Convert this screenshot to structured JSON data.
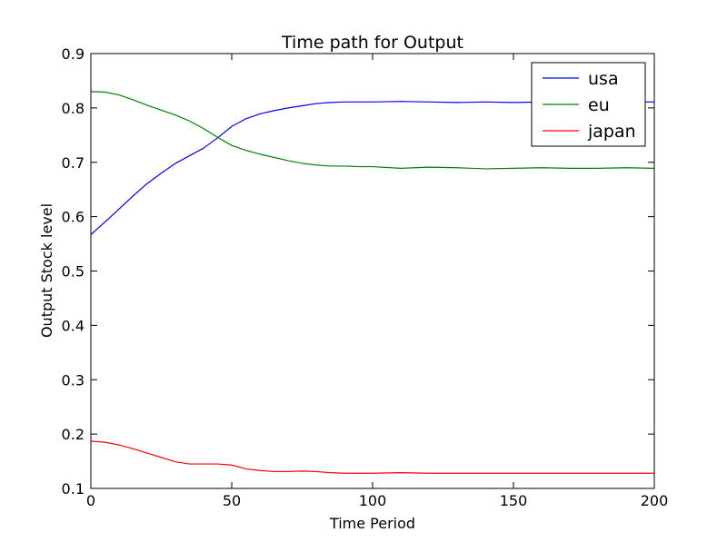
{
  "chart_data": {
    "type": "line",
    "title": "Time path for Output",
    "xlabel": "Time Period",
    "ylabel": "Output Stock level",
    "xlim": [
      0,
      200
    ],
    "ylim": [
      0.1,
      0.9
    ],
    "xticks": [
      0,
      50,
      100,
      150,
      200
    ],
    "yticks": [
      0.1,
      0.2,
      0.3,
      0.4,
      0.5,
      0.6,
      0.7,
      0.8,
      0.9
    ],
    "xtick_labels": [
      "0",
      "50",
      "100",
      "150",
      "200"
    ],
    "ytick_labels": [
      "0.1",
      "0.2",
      "0.3",
      "0.4",
      "0.5",
      "0.6",
      "0.7",
      "0.8",
      "0.9"
    ],
    "grid": false,
    "legend_position": "top-right",
    "x": [
      0,
      5,
      10,
      15,
      20,
      25,
      30,
      35,
      40,
      45,
      50,
      55,
      60,
      65,
      70,
      75,
      80,
      85,
      90,
      95,
      100,
      110,
      120,
      130,
      140,
      150,
      160,
      170,
      180,
      190,
      200
    ],
    "series": [
      {
        "name": "usa",
        "color": "#0000ff",
        "values": [
          0.567,
          0.59,
          0.614,
          0.638,
          0.661,
          0.68,
          0.698,
          0.712,
          0.726,
          0.745,
          0.766,
          0.78,
          0.789,
          0.795,
          0.8,
          0.804,
          0.808,
          0.81,
          0.811,
          0.811,
          0.811,
          0.812,
          0.811,
          0.81,
          0.811,
          0.81,
          0.811,
          0.811,
          0.81,
          0.811,
          0.811
        ]
      },
      {
        "name": "eu",
        "color": "#008000",
        "values": [
          0.83,
          0.829,
          0.824,
          0.815,
          0.805,
          0.796,
          0.787,
          0.776,
          0.762,
          0.746,
          0.731,
          0.722,
          0.715,
          0.709,
          0.703,
          0.698,
          0.695,
          0.693,
          0.693,
          0.692,
          0.692,
          0.689,
          0.691,
          0.69,
          0.688,
          0.689,
          0.69,
          0.689,
          0.689,
          0.69,
          0.689
        ]
      },
      {
        "name": "japan",
        "color": "#ff0000",
        "values": [
          0.187,
          0.185,
          0.18,
          0.173,
          0.165,
          0.157,
          0.149,
          0.145,
          0.145,
          0.145,
          0.143,
          0.136,
          0.133,
          0.131,
          0.131,
          0.132,
          0.131,
          0.129,
          0.128,
          0.128,
          0.128,
          0.129,
          0.128,
          0.128,
          0.128,
          0.128,
          0.128,
          0.128,
          0.128,
          0.128,
          0.128
        ]
      }
    ]
  }
}
